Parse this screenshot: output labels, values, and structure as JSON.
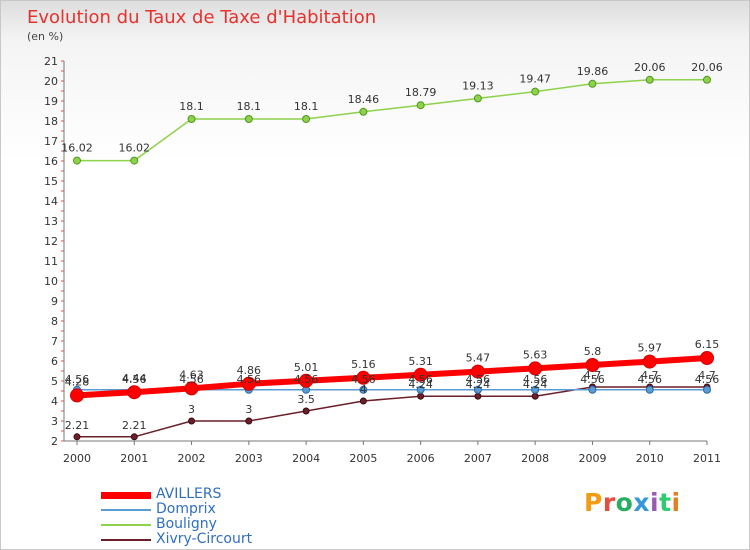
{
  "header": {
    "title": "Evolution du Taux de Taxe d'Habitation",
    "unit": "(en %)"
  },
  "logo": {
    "text": "Proxiti",
    "letter_colors": [
      "#f39c12",
      "#e74c3c",
      "#27ae60",
      "#3498db",
      "#9b59b6",
      "#2ecc71",
      "#e67e22"
    ]
  },
  "chart_data": {
    "type": "line",
    "x": [
      "2000",
      "2001",
      "2002",
      "2003",
      "2004",
      "2005",
      "2006",
      "2007",
      "2008",
      "2009",
      "2010",
      "2011"
    ],
    "ylim": [
      2,
      21
    ],
    "yticks": [
      2,
      3,
      4,
      5,
      6,
      7,
      8,
      9,
      10,
      11,
      12,
      13,
      14,
      15,
      16,
      17,
      18,
      19,
      20,
      21
    ],
    "grid": false,
    "legend_position": "bottom-left",
    "series": [
      {
        "name": "AVILLERS",
        "color": "#ff0000",
        "values": [
          4.28,
          4.44,
          4.63,
          4.86,
          5.01,
          5.16,
          5.31,
          5.47,
          5.63,
          5.8,
          5.97,
          6.15
        ],
        "labels": [
          "4.28",
          "4.44",
          "4.63",
          "4.86",
          "5.01",
          "5.16",
          "5.31",
          "5.47",
          "5.63",
          "5.8",
          "5.97",
          "6.15"
        ]
      },
      {
        "name": "Domprix",
        "color": "#5b9bd5",
        "values": [
          4.56,
          4.56,
          4.56,
          4.56,
          4.56,
          4.56,
          4.56,
          4.56,
          4.56,
          4.56,
          4.56,
          4.56
        ],
        "labels": [
          "4.56",
          "4.56",
          "4.56",
          "4.56",
          "4.56",
          "4.56",
          "4.56",
          "4.56",
          "4.56",
          "4.56",
          "4.56",
          "4.56"
        ]
      },
      {
        "name": "Bouligny",
        "color": "#8ed14b",
        "values": [
          16.02,
          16.02,
          18.1,
          18.1,
          18.1,
          18.46,
          18.79,
          19.13,
          19.47,
          19.86,
          20.06,
          20.06
        ],
        "labels": [
          "16.02",
          "16.02",
          "18.1",
          "18.1",
          "18.1",
          "18.46",
          "18.79",
          "19.13",
          "19.47",
          "19.86",
          "20.06",
          "20.06"
        ]
      },
      {
        "name": "Xivry-Circourt",
        "color": "#6b1f2a",
        "values": [
          2.21,
          2.21,
          3,
          3,
          3.5,
          4,
          4.24,
          4.24,
          4.24,
          4.7,
          4.7,
          4.7
        ],
        "labels": [
          "2.21",
          "2.21",
          "3",
          "3",
          "3.5",
          "4",
          "4.24",
          "4.24",
          "4.24",
          "4.7",
          "4.7",
          "4.7"
        ]
      }
    ]
  }
}
